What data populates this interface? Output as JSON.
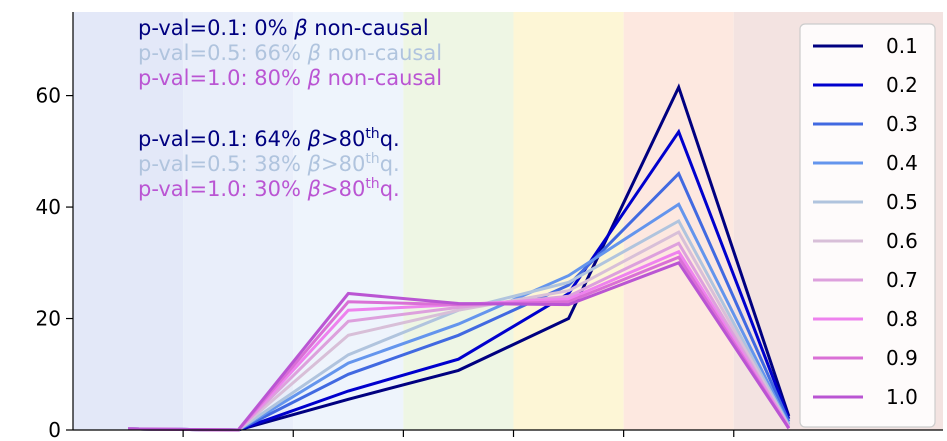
{
  "chart_data": {
    "type": "line",
    "title": "",
    "xlabel": "",
    "ylabel": "",
    "ylim": [
      0,
      75
    ],
    "yticks": [
      0,
      20,
      40,
      60
    ],
    "x": [
      0,
      1,
      2,
      3,
      4,
      5,
      6
    ],
    "grid": false,
    "legend_placement": "right",
    "bands": [
      {
        "color": "#e3e8f8"
      },
      {
        "color": "#e9eefa"
      },
      {
        "color": "#eef4fc"
      },
      {
        "color": "#eef6e4"
      },
      {
        "color": "#fdf6d6"
      },
      {
        "color": "#fde8e0"
      },
      {
        "color": "#f3e3e1"
      }
    ],
    "series": [
      {
        "name": "0.1",
        "color": "#000080",
        "values": [
          0.2,
          0,
          5.5,
          10.7,
          20,
          61.5,
          2.5
        ]
      },
      {
        "name": "0.2",
        "color": "#0000cd",
        "values": [
          0.2,
          0,
          7,
          12.7,
          24.5,
          53.5,
          2
        ]
      },
      {
        "name": "0.3",
        "color": "#4169e1",
        "values": [
          0.2,
          0,
          10,
          17,
          26,
          46,
          1.5
        ]
      },
      {
        "name": "0.4",
        "color": "#6495ed",
        "values": [
          0.2,
          0,
          12,
          19,
          27.7,
          40.5,
          1
        ]
      },
      {
        "name": "0.5",
        "color": "#b0c4de",
        "values": [
          0.2,
          0,
          13.5,
          21.5,
          26.5,
          37.5,
          0.8
        ]
      },
      {
        "name": "0.6",
        "color": "#d8bfd8",
        "values": [
          0.2,
          0,
          17,
          21.5,
          25,
          35.5,
          0.6
        ]
      },
      {
        "name": "0.7",
        "color": "#dda0dd",
        "values": [
          0.2,
          0,
          19.5,
          22,
          24,
          33.5,
          0.5
        ]
      },
      {
        "name": "0.8",
        "color": "#ee82ee",
        "values": [
          0.2,
          0,
          21.5,
          22.5,
          23.5,
          32,
          0.4
        ]
      },
      {
        "name": "0.9",
        "color": "#da70d6",
        "values": [
          0.2,
          0,
          23,
          22.5,
          23,
          31,
          0.3
        ]
      },
      {
        "name": "1.0",
        "color": "#ba55d3",
        "values": [
          0.2,
          0,
          24.5,
          22.7,
          22.5,
          30,
          0.3
        ]
      }
    ],
    "annotations": {
      "noncausal": [
        {
          "prefix": "p-val=0.1: 0% ",
          "beta": "β",
          "suffix": " non-causal",
          "color": "#000080"
        },
        {
          "prefix": "p-val=0.5: 66% ",
          "beta": "β",
          "suffix": " non-causal",
          "color": "#b0c4de"
        },
        {
          "prefix": "p-val=1.0: 80% ",
          "beta": "β",
          "suffix": " non-causal",
          "color": "#ba55d3"
        }
      ],
      "quantile": [
        {
          "prefix": "p-val=0.1: 64% ",
          "beta": "β",
          "gt": ">80",
          "sup": "th",
          "tail": "q.",
          "color": "#000080"
        },
        {
          "prefix": "p-val=0.5: 38% ",
          "beta": "β",
          "gt": ">80",
          "sup": "th",
          "tail": "q.",
          "color": "#b0c4de"
        },
        {
          "prefix": "p-val=1.0: 30% ",
          "beta": "β",
          "gt": ">80",
          "sup": "th",
          "tail": "q.",
          "color": "#ba55d3"
        }
      ]
    }
  }
}
